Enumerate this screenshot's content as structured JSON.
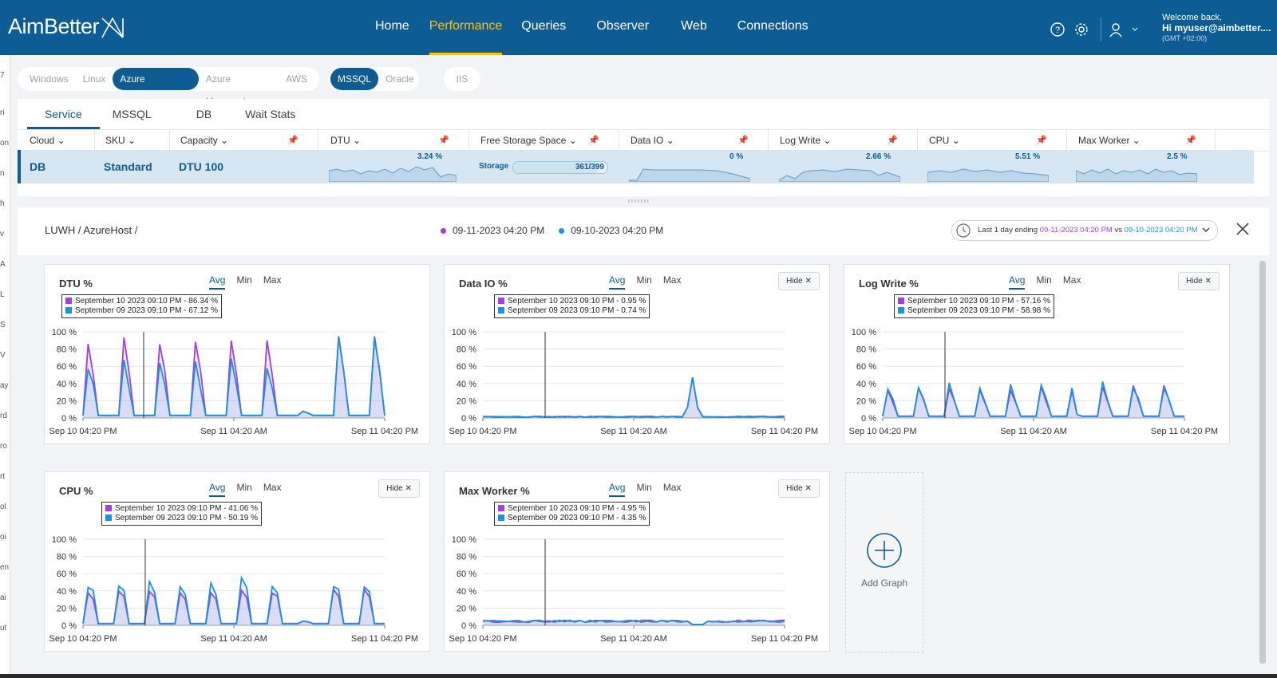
{
  "header": {
    "logo": "AimBetter",
    "nav": [
      {
        "label": "Home",
        "active": false
      },
      {
        "label": "Performance",
        "active": true
      },
      {
        "label": "Queries",
        "active": false
      },
      {
        "label": "Observer",
        "active": false
      },
      {
        "label": "Web",
        "active": false
      },
      {
        "label": "Connections",
        "active": false
      }
    ],
    "welcome": "Welcome back,",
    "user": "Hi myuser@aimbetter....",
    "timezone": "(GMT +02:00)"
  },
  "left_strip": [
    "7",
    "ri",
    "on",
    "n",
    "h",
    "v",
    "A",
    "L",
    "S",
    "V",
    "ay",
    "rd",
    "ro",
    "rt",
    "ol",
    "oi",
    "en",
    "ai",
    "ut"
  ],
  "platforms": {
    "group1": [
      {
        "label": "Windows",
        "active": false
      },
      {
        "label": "Linux",
        "active": false
      },
      {
        "label": "Azure Databases",
        "active": true
      },
      {
        "label": "Azure Managed",
        "active": false
      },
      {
        "label": "AWS",
        "active": false
      }
    ],
    "group2": [
      {
        "label": "MSSQL",
        "active": true
      },
      {
        "label": "Oracle",
        "active": false
      }
    ],
    "group3": [
      {
        "label": "IIS",
        "active": false
      }
    ]
  },
  "service": {
    "tabs": [
      {
        "label": "Service",
        "active": true
      },
      {
        "label": "MSSQL",
        "active": false
      },
      {
        "label": "DB",
        "active": false
      },
      {
        "label": "Wait Stats",
        "active": false
      }
    ],
    "columns": [
      "Cloud",
      "SKU",
      "Capacity",
      "DTU",
      "Free Storage Space",
      "Data IO",
      "Log Write",
      "CPU",
      "Max Worker"
    ],
    "row": {
      "cloud": "DB",
      "sku": "Standard",
      "capacity": "DTU 100",
      "dtu": "3.24 %",
      "storage_label": "Storage",
      "storage_value": "361/399",
      "storage_fraction": 0.905,
      "data_io": "0 %",
      "log_write": "2.66 %",
      "cpu": "5.51 %",
      "max_worker": "2.5 %"
    }
  },
  "panel": {
    "breadcrumb": "LUWH / AzureHost /",
    "legend": [
      {
        "label": "09-11-2023 04:20 PM",
        "color": "#a040e0"
      },
      {
        "label": "09-10-2023 04:20 PM",
        "color": "#1e90e0"
      }
    ],
    "range": {
      "prefix": "Last 1 day ending",
      "date1": "09-11-2023 04:20 PM",
      "vs": "vs",
      "date2": "09-10-2023 04:20 PM"
    },
    "add_graph": "Add Graph"
  },
  "colors": {
    "brand": "#0d5c94",
    "accent": "#f5c518",
    "series_current": "#a040e0",
    "series_previous": "#1e90e0"
  },
  "chart_common": {
    "agg": [
      "Avg",
      "Min",
      "Max"
    ],
    "hide_label": "Hide",
    "y_ticks": [
      "100 %",
      "80 %",
      "60 %",
      "40 %",
      "20 %",
      "0 %"
    ],
    "x_ticks": [
      "Sep 10 04:20 PM",
      "Sep 11 04:20 AM",
      "Sep 11 04:20 PM"
    ]
  },
  "chart_data": [
    {
      "type": "area",
      "title": "DTU %",
      "pattern": "dtu",
      "hide": false,
      "ylim": [
        0,
        100
      ],
      "tooltip": [
        "September 10 2023 09:10 PM - 86.34 %",
        "September 09 2023 09:10 PM - 67.12 %"
      ],
      "series": [
        {
          "name": "09-11-2023 04:20 PM"
        },
        {
          "name": "09-10-2023 04:20 PM"
        }
      ]
    },
    {
      "type": "area",
      "title": "Data IO %",
      "pattern": "dataio",
      "hide": true,
      "ylim": [
        0,
        100
      ],
      "tooltip": [
        "September 10 2023 09:10 PM - 0.95 %",
        "September 09 2023 09:10 PM - 0.74 %"
      ],
      "series": [
        {
          "name": "09-11-2023 04:20 PM"
        },
        {
          "name": "09-10-2023 04:20 PM"
        }
      ]
    },
    {
      "type": "area",
      "title": "Log Write %",
      "pattern": "log",
      "hide": true,
      "ylim": [
        0,
        100
      ],
      "tooltip": [
        "September 10 2023 09:10 PM - 57.16 %",
        "September 09 2023 09:10 PM - 58.98 %"
      ],
      "series": [
        {
          "name": "09-11-2023 04:20 PM"
        },
        {
          "name": "09-10-2023 04:20 PM"
        }
      ]
    },
    {
      "type": "area",
      "title": "CPU %",
      "pattern": "cpu",
      "hide": true,
      "ylim": [
        0,
        100
      ],
      "tooltip": [
        "September 10 2023 09:10 PM - 41.06 %",
        "September 09 2023 09:10 PM - 50.19 %"
      ],
      "series": [
        {
          "name": "09-11-2023 04:20 PM"
        },
        {
          "name": "09-10-2023 04:20 PM"
        }
      ]
    },
    {
      "type": "area",
      "title": "Max Worker %",
      "pattern": "worker",
      "hide": true,
      "ylim": [
        0,
        100
      ],
      "tooltip": [
        "September 10 2023 09:10 PM - 4.95 %",
        "September 09 2023 09:10 PM - 4.35 %"
      ],
      "series": [
        {
          "name": "09-11-2023 04:20 PM"
        },
        {
          "name": "09-10-2023 04:20 PM"
        }
      ]
    }
  ]
}
